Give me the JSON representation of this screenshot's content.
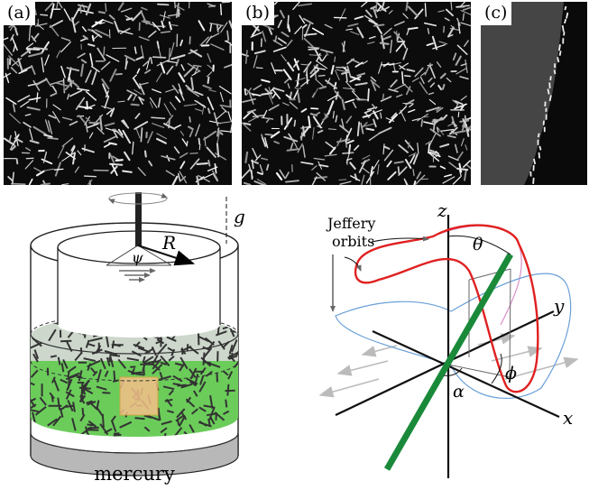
{
  "panels": {
    "a": {
      "label": "(a)"
    },
    "b": {
      "label": "(b)"
    },
    "c": {
      "label": "(c)"
    }
  },
  "diagram": {
    "apparatus": {
      "gravity": "g",
      "radius": "R",
      "angle": "ψ",
      "base": "mercury"
    },
    "axes": {
      "z": "z",
      "y": "y",
      "x": "x",
      "theta": "θ",
      "phi": "ϕ",
      "alpha": "α"
    },
    "annotation": {
      "line1": "Jeffery",
      "line2": "orbits"
    }
  },
  "colors": {
    "fluid_green": "#66cc55",
    "orbit_red": "#e02020",
    "orbit_blue": "#6aa0d8",
    "orbit_pink": "#d890c8",
    "fiber_green": "#1a8a3a",
    "tracer": "#f5c08a"
  }
}
